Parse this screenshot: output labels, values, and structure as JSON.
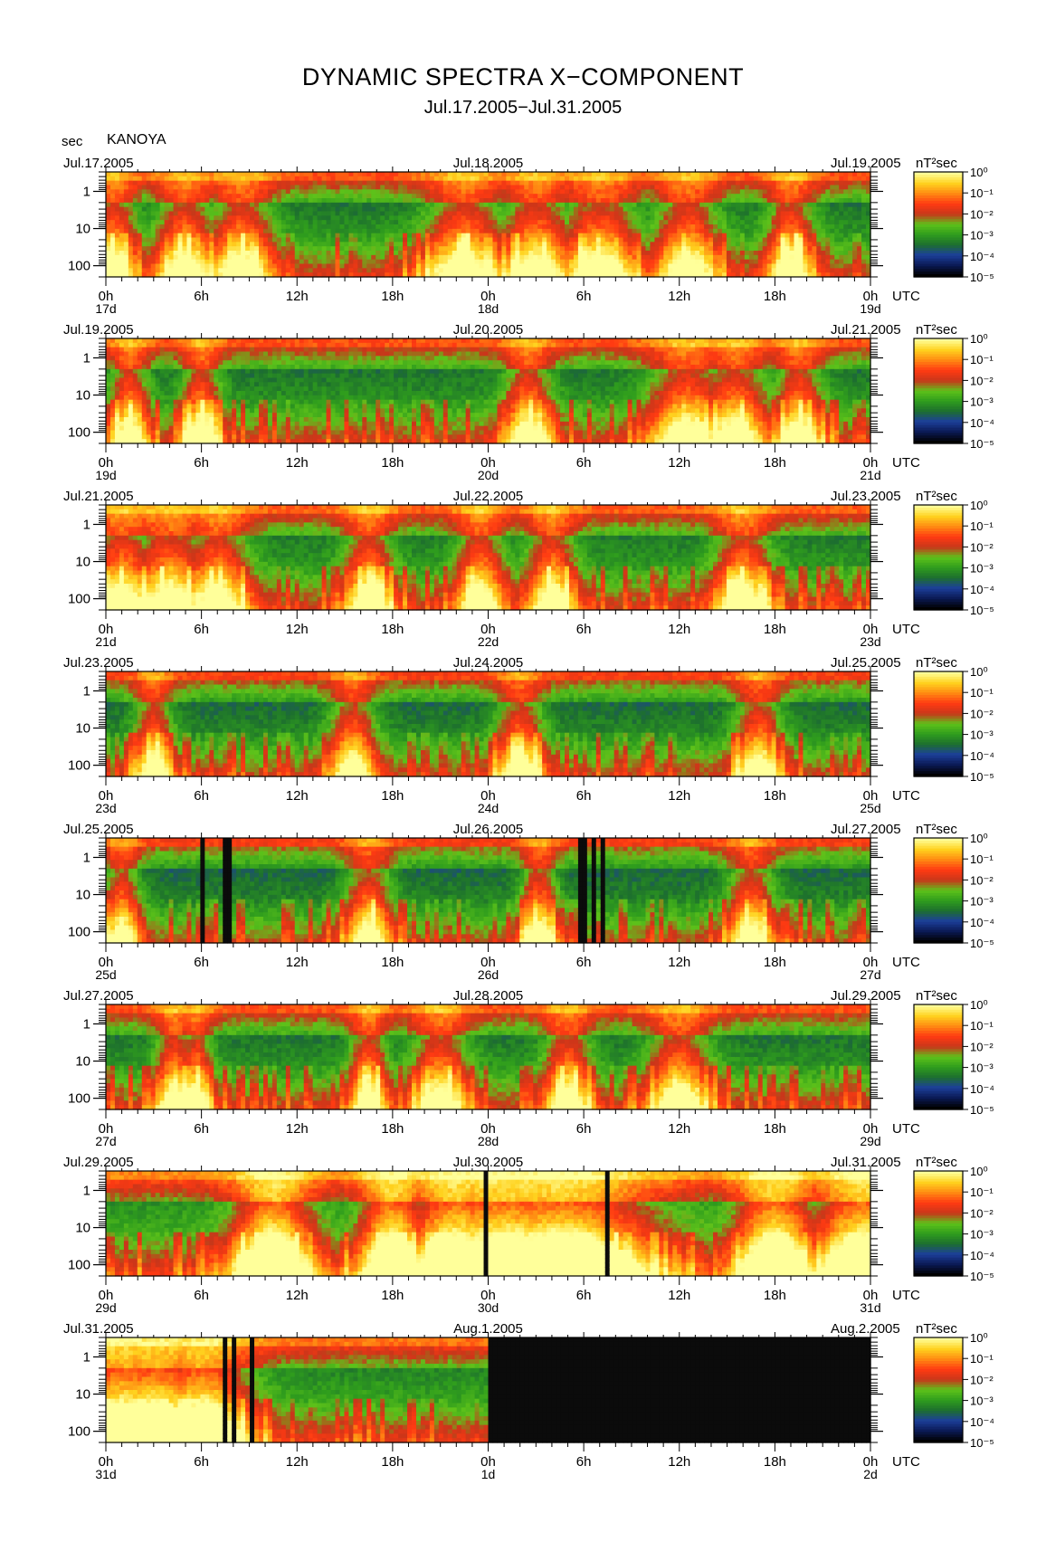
{
  "header": {
    "title": "DYNAMIC SPECTRA X−COMPONENT",
    "subtitle": "Jul.17.2005−Jul.31.2005",
    "unit_label": "sec",
    "station": "KANOYA"
  },
  "colors": {
    "background": "#ffffff",
    "spectrum_scale": [
      "#000000",
      "#0b1a55",
      "#1c3f9a",
      "#1d6f2e",
      "#2f9d1d",
      "#5ec21a",
      "#c9361a",
      "#ff3a12",
      "#ff8a12",
      "#ffd21e",
      "#ffff9a"
    ],
    "no_data": "#0b0b0b"
  },
  "chart_data": [
    {
      "type": "heatmap",
      "left_date": "Jul.17.2005",
      "mid_date": "Jul.18.2005",
      "right_date": "Jul.19.2005",
      "x_tick_labels": [
        "0h",
        "6h",
        "12h",
        "18h",
        "0h",
        "6h",
        "12h",
        "18h",
        "0h"
      ],
      "day_labels": [
        "17d",
        "18d",
        "19d"
      ],
      "x_unit": "UTC",
      "y_tick_labels": [
        "1",
        "10",
        "100"
      ],
      "ylim": [
        0.3,
        200
      ],
      "colorbar_unit": "nT²sec",
      "colorbar_ticks": [
        "10⁰",
        "10⁻¹",
        "10⁻²",
        "10⁻³",
        "10⁻⁴",
        "10⁻⁵"
      ],
      "level": 0.35,
      "no_data_ranges_h": [],
      "events_h": [
        [
          0.5,
          1.5
        ],
        [
          5.0,
          1.8
        ],
        [
          8.5,
          2.0
        ],
        [
          22.5,
          2.5
        ],
        [
          27.0,
          2.2
        ],
        [
          31.0,
          2.4
        ],
        [
          36.5,
          2.0
        ],
        [
          43.0,
          1.5
        ]
      ]
    },
    {
      "type": "heatmap",
      "left_date": "Jul.19.2005",
      "mid_date": "Jul.20.2005",
      "right_date": "Jul.21.2005",
      "x_tick_labels": [
        "0h",
        "6h",
        "12h",
        "18h",
        "0h",
        "6h",
        "12h",
        "18h",
        "0h"
      ],
      "day_labels": [
        "19d",
        "20d",
        "21d"
      ],
      "x_unit": "UTC",
      "y_tick_labels": [
        "1",
        "10",
        "100"
      ],
      "ylim": [
        0.3,
        200
      ],
      "colorbar_unit": "nT²sec",
      "colorbar_ticks": [
        "10⁰",
        "10⁻¹",
        "10⁻²",
        "10⁻³",
        "10⁻⁴",
        "10⁻⁵"
      ],
      "level": 0.35,
      "no_data_ranges_h": [],
      "events_h": [
        [
          1.5,
          1.2
        ],
        [
          6.0,
          1.2
        ],
        [
          26.5,
          1.5
        ],
        [
          36.5,
          2.5
        ],
        [
          39.5,
          2.0
        ],
        [
          43.5,
          1.5
        ]
      ]
    },
    {
      "type": "heatmap",
      "left_date": "Jul.21.2005",
      "mid_date": "Jul.22.2005",
      "right_date": "Jul.23.2005",
      "x_tick_labels": [
        "0h",
        "6h",
        "12h",
        "18h",
        "0h",
        "6h",
        "12h",
        "18h",
        "0h"
      ],
      "day_labels": [
        "21d",
        "22d",
        "23d"
      ],
      "x_unit": "UTC",
      "y_tick_labels": [
        "1",
        "10",
        "100"
      ],
      "ylim": [
        0.3,
        200
      ],
      "colorbar_unit": "nT²sec",
      "colorbar_ticks": [
        "10⁰",
        "10⁻¹",
        "10⁻²",
        "10⁻³",
        "10⁻⁴",
        "10⁻⁵"
      ],
      "level": 0.4,
      "no_data_ranges_h": [],
      "events_h": [
        [
          1.0,
          2.2
        ],
        [
          4.0,
          2.5
        ],
        [
          7.0,
          2.0
        ],
        [
          16.5,
          1.5
        ],
        [
          23.5,
          1.5
        ],
        [
          28.0,
          1.5
        ],
        [
          40.0,
          1.8
        ]
      ]
    },
    {
      "type": "heatmap",
      "left_date": "Jul.23.2005",
      "mid_date": "Jul.24.2005",
      "right_date": "Jul.25.2005",
      "x_tick_labels": [
        "0h",
        "6h",
        "12h",
        "18h",
        "0h",
        "6h",
        "12h",
        "18h",
        "0h"
      ],
      "day_labels": [
        "23d",
        "24d",
        "25d"
      ],
      "x_unit": "UTC",
      "y_tick_labels": [
        "1",
        "10",
        "100"
      ],
      "ylim": [
        0.3,
        200
      ],
      "colorbar_unit": "nT²sec",
      "colorbar_ticks": [
        "10⁰",
        "10⁻¹",
        "10⁻²",
        "10⁻³",
        "10⁻⁴",
        "10⁻⁵"
      ],
      "level": 0.25,
      "no_data_ranges_h": [],
      "events_h": [
        [
          3.0,
          1.2
        ],
        [
          15.5,
          1.5
        ],
        [
          26.0,
          1.5
        ],
        [
          41.0,
          1.5
        ]
      ]
    },
    {
      "type": "heatmap",
      "left_date": "Jul.25.2005",
      "mid_date": "Jul.26.2005",
      "right_date": "Jul.27.2005",
      "x_tick_labels": [
        "0h",
        "6h",
        "12h",
        "18h",
        "0h",
        "6h",
        "12h",
        "18h",
        "0h"
      ],
      "day_labels": [
        "25d",
        "26d",
        "27d"
      ],
      "x_unit": "UTC",
      "y_tick_labels": [
        "1",
        "10",
        "100"
      ],
      "ylim": [
        0.3,
        200
      ],
      "colorbar_unit": "nT²sec",
      "colorbar_ticks": [
        "10⁰",
        "10⁻¹",
        "10⁻²",
        "10⁻³",
        "10⁻⁴",
        "10⁻⁵"
      ],
      "level": 0.22,
      "no_data_ranges_h": [
        [
          5.8,
          6.1
        ],
        [
          7.4,
          7.8
        ],
        [
          29.6,
          30.1
        ],
        [
          30.4,
          30.8
        ],
        [
          31.1,
          31.4
        ]
      ],
      "events_h": [
        [
          1.0,
          1.2
        ],
        [
          16.5,
          1.5
        ],
        [
          27.0,
          1.0
        ],
        [
          27.4,
          1.0
        ],
        [
          40.5,
          1.5
        ]
      ]
    },
    {
      "type": "heatmap",
      "left_date": "Jul.27.2005",
      "mid_date": "Jul.28.2005",
      "right_date": "Jul.29.2005",
      "x_tick_labels": [
        "0h",
        "6h",
        "12h",
        "18h",
        "0h",
        "6h",
        "12h",
        "18h",
        "0h"
      ],
      "day_labels": [
        "27d",
        "28d",
        "29d"
      ],
      "x_unit": "UTC",
      "y_tick_labels": [
        "1",
        "10",
        "100"
      ],
      "ylim": [
        0.3,
        200
      ],
      "colorbar_unit": "nT²sec",
      "colorbar_ticks": [
        "10⁰",
        "10⁻¹",
        "10⁻²",
        "10⁻³",
        "10⁻⁴",
        "10⁻⁵"
      ],
      "level": 0.35,
      "no_data_ranges_h": [],
      "events_h": [
        [
          4.3,
          1.2
        ],
        [
          5.7,
          1.0
        ],
        [
          16.5,
          1.2
        ],
        [
          21.0,
          1.8
        ],
        [
          29.0,
          1.5
        ],
        [
          36.0,
          2.0
        ]
      ]
    },
    {
      "type": "heatmap",
      "left_date": "Jul.29.2005",
      "mid_date": "Jul.30.2005",
      "right_date": "Jul.31.2005",
      "x_tick_labels": [
        "0h",
        "6h",
        "12h",
        "18h",
        "0h",
        "6h",
        "12h",
        "18h",
        "0h"
      ],
      "day_labels": [
        "29d",
        "30d",
        "31d"
      ],
      "x_unit": "UTC",
      "y_tick_labels": [
        "1",
        "10",
        "100"
      ],
      "ylim": [
        0.3,
        200
      ],
      "colorbar_unit": "nT²sec",
      "colorbar_ticks": [
        "10⁰",
        "10⁻¹",
        "10⁻²",
        "10⁻³",
        "10⁻⁴",
        "10⁻⁵"
      ],
      "level": 0.6,
      "no_data_ranges_h": [
        [
          23.8,
          24.0
        ],
        [
          31.4,
          31.6
        ]
      ],
      "events_h": [
        [
          10.5,
          2.5
        ],
        [
          18.0,
          2.0
        ],
        [
          22.0,
          3.0
        ],
        [
          25.0,
          6.0
        ],
        [
          28.5,
          6.0
        ],
        [
          42.0,
          2.5
        ],
        [
          47.5,
          3.0
        ]
      ]
    },
    {
      "type": "heatmap",
      "left_date": "Jul.31.2005",
      "mid_date": "Aug.1.2005",
      "right_date": "Aug.2.2005",
      "x_tick_labels": [
        "0h",
        "6h",
        "12h",
        "18h",
        "0h",
        "6h",
        "12h",
        "18h",
        "0h"
      ],
      "day_labels": [
        "31d",
        "1d",
        "2d"
      ],
      "x_unit": "UTC",
      "y_tick_labels": [
        "1",
        "10",
        "100"
      ],
      "ylim": [
        0.3,
        200
      ],
      "colorbar_unit": "nT²sec",
      "colorbar_ticks": [
        "10⁰",
        "10⁻¹",
        "10⁻²",
        "10⁻³",
        "10⁻⁴",
        "10⁻⁵"
      ],
      "level": 0.5,
      "no_data_ranges_h": [
        [
          7.4,
          7.6
        ],
        [
          7.9,
          8.2
        ],
        [
          8.4,
          8.6
        ],
        [
          9.0,
          9.3
        ],
        [
          24.0,
          48.0
        ]
      ],
      "events_h": [
        [
          1.0,
          4.0
        ],
        [
          3.0,
          4.0
        ],
        [
          6.0,
          3.0
        ]
      ]
    }
  ]
}
